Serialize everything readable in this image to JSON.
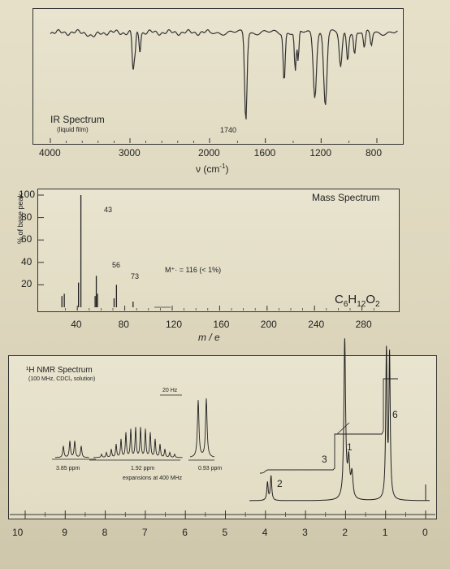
{
  "ir": {
    "title": "IR Spectrum",
    "subtitle": "(liquid film)",
    "peak_label": "1740",
    "x_ticks": [
      "4000",
      "3000",
      "2000",
      "1600",
      "1200",
      "800"
    ],
    "xlabel_v": "ν",
    "xlabel_unit": "(cm",
    "xlabel_exp": "-1",
    "xlabel_close": ")"
  },
  "ms": {
    "title": "Mass Spectrum",
    "ylabel": "% of base peak",
    "y_ticks": [
      "100",
      "80",
      "60",
      "40",
      "20"
    ],
    "x_ticks": [
      "40",
      "80",
      "120",
      "160",
      "200",
      "240",
      "280"
    ],
    "xlabel": "m / e",
    "peak_labels": [
      "43",
      "56",
      "73"
    ],
    "molecular_ion": "M⁺· = 116 (< 1%)",
    "formula_c": "C",
    "formula_c_n": "6",
    "formula_h": "H",
    "formula_h_n": "12",
    "formula_o": "O",
    "formula_o_n": "2"
  },
  "nmr": {
    "title": "¹H NMR Spectrum",
    "subtitle": "(100 MHz, CDCl₃ solution)",
    "scale_label": "20 Hz",
    "ppm_labels": [
      "3.85 ppm",
      "1.92 ppm",
      "0.93 ppm"
    ],
    "expansion_note": "expansions at 400 MHz",
    "integrals": [
      "2",
      "3",
      "1",
      "6"
    ],
    "x_ticks": [
      "10",
      "9",
      "8",
      "7",
      "6",
      "5",
      "4",
      "3",
      "2",
      "1",
      "0"
    ]
  },
  "chart_data": [
    {
      "type": "line",
      "title": "IR Spectrum",
      "xlabel": "ν (cm⁻¹)",
      "x_ticks": [
        4000,
        3000,
        2000,
        1600,
        1200,
        800
      ],
      "annotations": [
        {
          "x": 1740,
          "label": "1740"
        }
      ],
      "absorptions_cm1": [
        2960,
        2870,
        1740,
        1465,
        1380,
        1240,
        1170,
        1050
      ]
    },
    {
      "type": "bar",
      "title": "Mass Spectrum",
      "xlabel": "m / e",
      "ylabel": "% of base peak",
      "ylim": [
        0,
        100
      ],
      "xlim": [
        20,
        300
      ],
      "peaks": [
        {
          "x": 27,
          "y": 10
        },
        {
          "x": 29,
          "y": 12
        },
        {
          "x": 41,
          "y": 22
        },
        {
          "x": 43,
          "y": 100
        },
        {
          "x": 55,
          "y": 10
        },
        {
          "x": 56,
          "y": 28
        },
        {
          "x": 57,
          "y": 12
        },
        {
          "x": 71,
          "y": 8
        },
        {
          "x": 73,
          "y": 20
        },
        {
          "x": 87,
          "y": 5
        }
      ],
      "annotations": [
        "43",
        "56",
        "73",
        "M⁺· = 116 (< 1%)"
      ]
    },
    {
      "type": "line",
      "title": "¹H NMR Spectrum",
      "xlabel": "ppm",
      "xlim": [
        10,
        0
      ],
      "signals": [
        {
          "ppm": 3.85,
          "integral": 2,
          "multiplicity": "doublet"
        },
        {
          "ppm": 1.92,
          "integral": 1,
          "multiplicity": "multiplet"
        },
        {
          "ppm": 2.0,
          "integral": 3,
          "multiplicity": "singlet"
        },
        {
          "ppm": 0.93,
          "integral": 6,
          "multiplicity": "doublet"
        }
      ]
    }
  ]
}
